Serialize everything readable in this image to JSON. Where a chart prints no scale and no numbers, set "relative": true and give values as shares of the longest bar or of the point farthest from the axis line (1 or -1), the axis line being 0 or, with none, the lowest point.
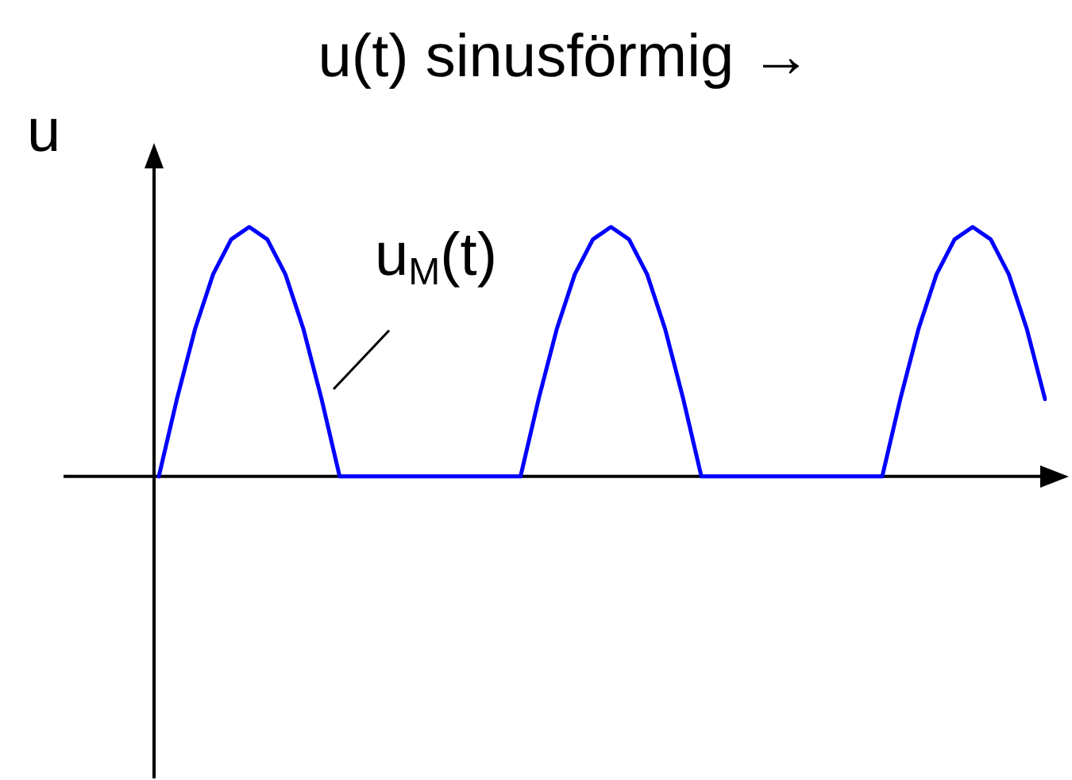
{
  "chart_data": {
    "type": "line",
    "title": "u(t) sinusförmig →",
    "ylabel": "u",
    "relative": true,
    "legend": false,
    "tick_labels": false,
    "marker": "none",
    "line_style": "solid",
    "annotations": [
      "u$_{M}$(t)"
    ],
    "categories": [
      null,
      null,
      null,
      null,
      null,
      null,
      null,
      null,
      null,
      null,
      null,
      null,
      null,
      null,
      null,
      null,
      null,
      null,
      null,
      null,
      null,
      null,
      null,
      null,
      null,
      null,
      null,
      null,
      null,
      null,
      null,
      null,
      null,
      null,
      null,
      null,
      null,
      null,
      null,
      null,
      null,
      null,
      null,
      null,
      null,
      null,
      null,
      null,
      null,
      null
    ],
    "series": [
      {
        "color": "#0000ff",
        "values": [
          0,
          0.31,
          0.59,
          0.81,
          0.95,
          1,
          0.95,
          0.81,
          0.59,
          0.31,
          0,
          0,
          0,
          0,
          0,
          0,
          0,
          0,
          0,
          0,
          0,
          0.31,
          0.59,
          0.81,
          0.95,
          1,
          0.95,
          0.81,
          0.59,
          0.31,
          0,
          0,
          0,
          0,
          0,
          0,
          0,
          0,
          0,
          0,
          0,
          0.31,
          0.59,
          0.81,
          0.95,
          1,
          0.95,
          0.81,
          0.59,
          0.31
        ]
      }
    ]
  }
}
